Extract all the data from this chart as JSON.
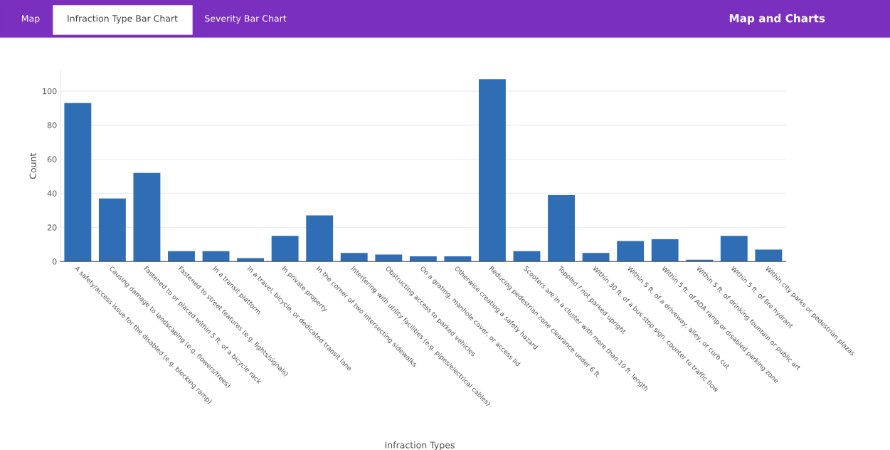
{
  "chart_data": {
    "type": "bar",
    "title": "Map and Charts",
    "annotations": [
      "Map",
      "Infraction Type Bar Chart",
      "Severity Bar Chart"
    ],
    "xlabel": "Infraction Types",
    "ylabel": "Count",
    "categories": [
      "A safety/access issue for the disabled (e.g. blocking ramp)",
      "Causing damage to landscaping (e.g. flowers/trees)",
      "Fastened to or placed within 5 ft. of a bicycle rack",
      "Fastened to street features (e.g. lights/signals)",
      "In a transit platform",
      "In a travel, bicycle, or dedicated transit lane",
      "In private property",
      "In the corner of two intersecting sidewalks",
      "Interfering with utility facilities (e.g. pipes/electrical cables)",
      "Obstructing access to parked vehicles",
      "On a grating, manhole cover, or access lid",
      "Otherwise creating a safety hazard",
      "Reducing pedestrian zone clearance under 6 ft.",
      "Scooters are in a cluster with more than 10 ft. length",
      "Toppled / not parked upright",
      "Within 30 ft. of a bus stop sign, counter to traffic flow",
      "Within 5 ft. of a driveway, alley, or curb cut",
      "Within 5 ft. of ADA ramp or disabled parking zone",
      "Within 5 ft. of drinking fountain or public art",
      "Within 5 ft. of fire hydrant",
      "Within city parks or pedestrian plazas"
    ],
    "values": [
      93,
      37,
      52,
      6,
      6,
      2,
      15,
      27,
      5,
      4,
      3,
      3,
      107,
      6,
      39,
      5,
      12,
      13,
      1,
      15,
      7
    ],
    "color": "#2f6db5",
    "ylim": [
      0,
      112
    ],
    "yticks": [
      0,
      20,
      40,
      60,
      80,
      100
    ],
    "grid": "y"
  }
}
